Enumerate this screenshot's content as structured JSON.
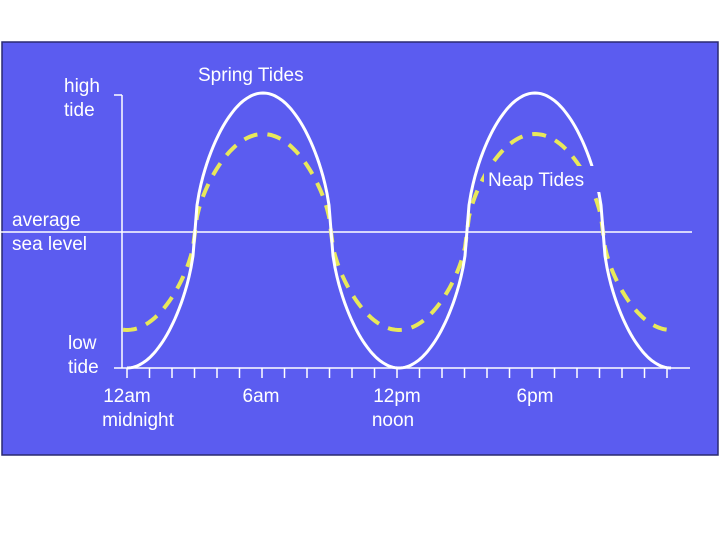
{
  "y_labels": [
    [
      "high",
      "tide"
    ],
    [
      "average",
      "sea level"
    ],
    [
      "low",
      "tide"
    ]
  ],
  "curve_labels": [
    "Spring Tides",
    "Neap Tides"
  ],
  "time_labels": [
    [
      "12am",
      "midnight"
    ],
    [
      "6am"
    ],
    [
      "12pm",
      "noon"
    ],
    [
      "6pm"
    ]
  ]
}
